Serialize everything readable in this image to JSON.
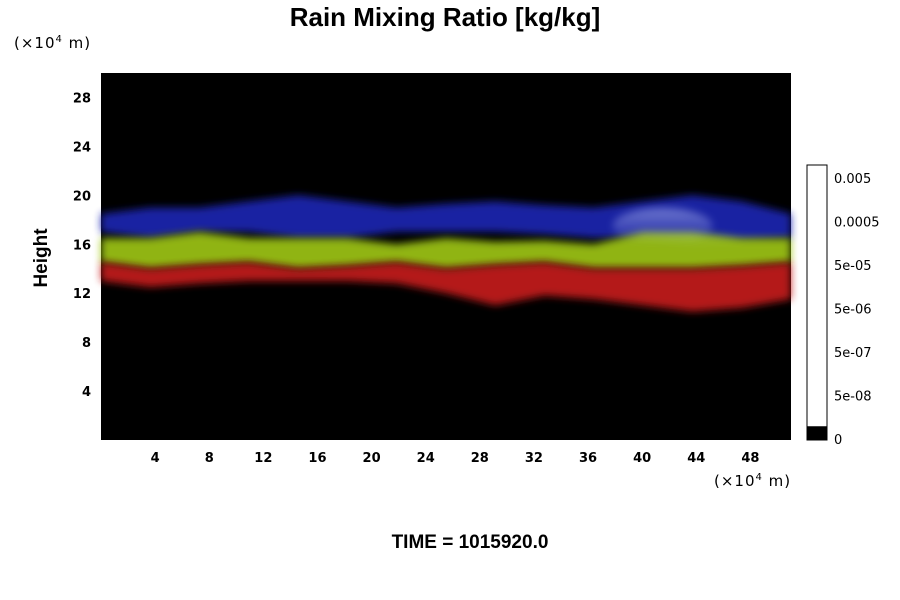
{
  "chart_data": {
    "type": "heatmap",
    "title": "Rain Mixing Ratio [kg/kg]",
    "ylabel": "Height",
    "x_unit": "(×10⁴ m)",
    "y_unit": "(×10⁴ m)",
    "xlim": [
      0,
      51
    ],
    "ylim": [
      0,
      30
    ],
    "x_ticks": [
      4,
      8,
      12,
      16,
      20,
      24,
      28,
      32,
      36,
      40,
      44,
      48
    ],
    "y_ticks": [
      4,
      8,
      12,
      16,
      20,
      24,
      28
    ],
    "colorbar_ticks": [
      "0",
      "5e-08",
      "5e-07",
      "5e-06",
      "5e-05",
      "0.0005",
      "0.005"
    ],
    "background_color": "#000000",
    "layers": [
      {
        "color": "#1e28b4",
        "band_bottom": [
          17,
          16.5,
          17,
          17,
          16.5,
          16.5,
          17,
          17,
          17,
          16.8,
          16.5,
          16.5,
          16,
          16.2,
          16.5
        ],
        "band_top": [
          18.5,
          19,
          19,
          19.5,
          20,
          19.5,
          19,
          19.3,
          19.5,
          19.2,
          19,
          19.5,
          20,
          19.5,
          18.5
        ]
      },
      {
        "color": "#a0c814",
        "band_bottom": [
          14.5,
          14,
          14.3,
          14.5,
          14,
          14.2,
          14.5,
          14,
          14.3,
          14.5,
          14,
          14,
          14,
          14.2,
          14.5
        ],
        "band_top": [
          16.5,
          16.5,
          17,
          16.5,
          16.5,
          16.5,
          16,
          16.5,
          16.2,
          16.3,
          16,
          17,
          17,
          16.5,
          16.5
        ]
      },
      {
        "color": "#c81e1e",
        "band_bottom": [
          13,
          12.5,
          12.8,
          13,
          13,
          13,
          12.8,
          12,
          11,
          11.8,
          11.5,
          11,
          10.5,
          10.8,
          11.5
        ],
        "band_top": [
          14.5,
          14,
          14.3,
          14.5,
          14,
          14.2,
          14.5,
          14,
          14.3,
          14.5,
          14,
          14,
          14,
          14.2,
          14.5
        ]
      }
    ]
  },
  "labels": {
    "title": "Rain Mixing Ratio [kg/kg]",
    "unit_base": "(×10",
    "unit_exp": "4",
    "unit_end": " m)",
    "ylabel": "Height",
    "time": "TIME = 1015920.0"
  }
}
